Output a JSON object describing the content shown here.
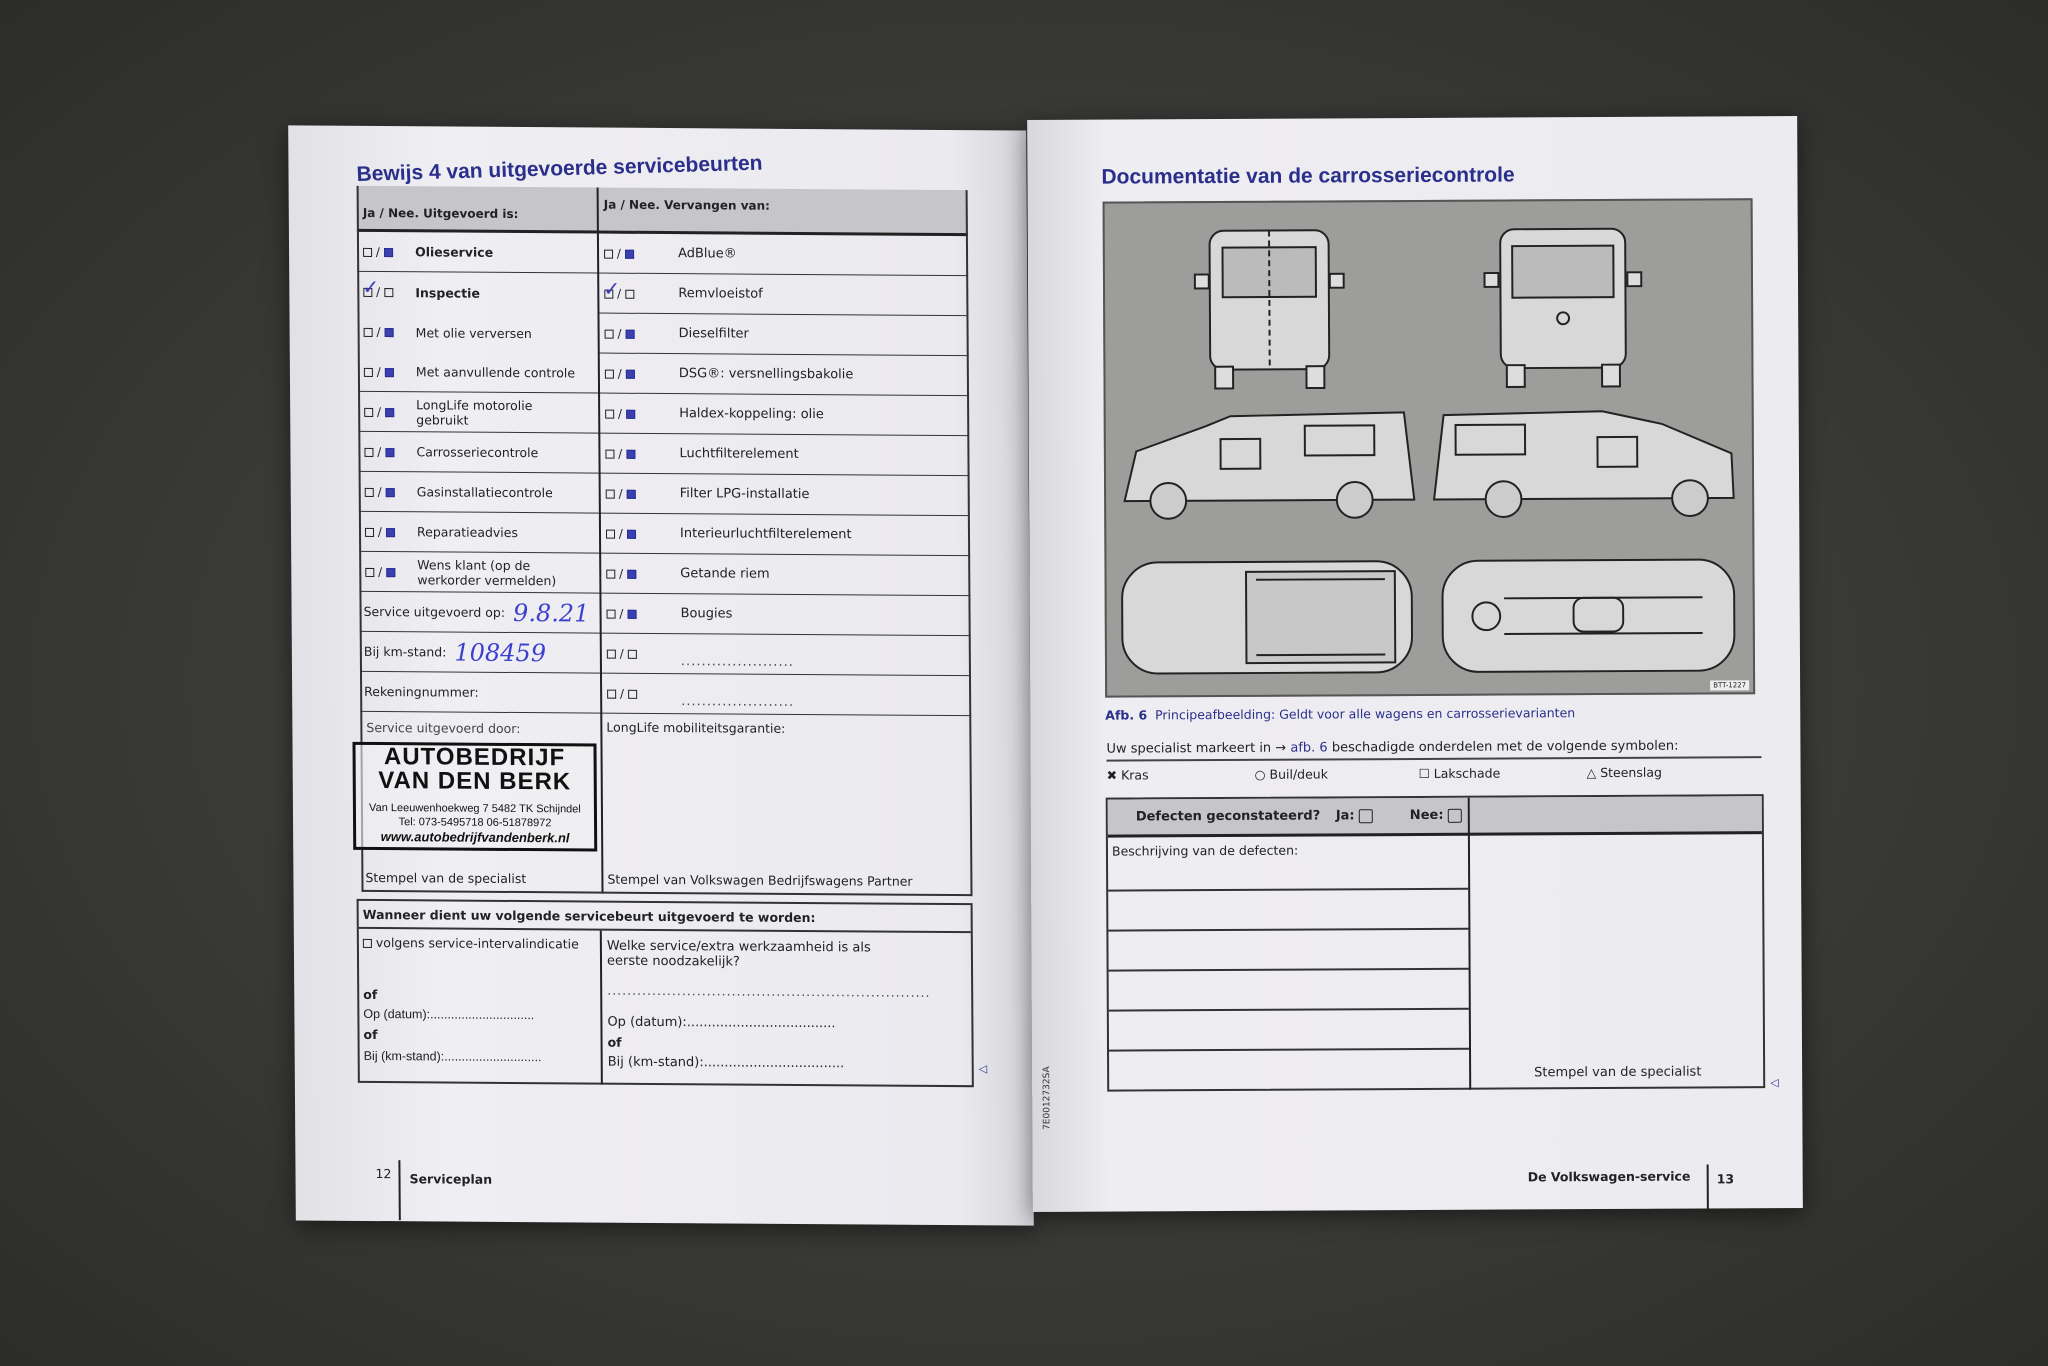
{
  "left_page": {
    "title": "Bewijs 4 van uitgevoerde servicebeurten",
    "col_left_header": "Ja / Nee. Uitgevoerd is:",
    "col_right_header": "Ja / Nee. Vervangen van:",
    "left_rows": [
      {
        "label": "Olieservice",
        "checked": "nee",
        "bold": true
      },
      {
        "label": "Inspectie",
        "checked": "ja",
        "bold": true
      },
      {
        "label": "Met olie verversen",
        "checked": "nee"
      },
      {
        "label": "Met aanvullende controle",
        "checked": "nee"
      },
      {
        "label": "LongLife motorolie gebruikt",
        "checked": "nee"
      },
      {
        "label": "Carrosseriecontrole",
        "checked": "nee"
      },
      {
        "label": "Gasinstallatiecontrole",
        "checked": "nee"
      },
      {
        "label": "Reparatieadvies",
        "checked": "nee"
      },
      {
        "label": "Wens klant (op de werkorder vermelden)",
        "checked": "nee"
      }
    ],
    "service_date_label": "Service uitgevoerd op:",
    "service_date_value": "9.8.21",
    "km_label": "Bij km-stand:",
    "km_value": "108459",
    "account_label": "Rekeningnummer:",
    "right_rows": [
      {
        "label": "AdBlue®",
        "checked": "nee"
      },
      {
        "label": "Remvloeistof",
        "checked": "ja"
      },
      {
        "label": "Dieselfilter",
        "checked": "nee"
      },
      {
        "label": "DSG®: versnellingsbakolie",
        "checked": "nee"
      },
      {
        "label": "Haldex-koppeling: olie",
        "checked": "nee"
      },
      {
        "label": "Luchtfilterelement",
        "checked": "nee"
      },
      {
        "label": "Filter LPG-installatie",
        "checked": "nee"
      },
      {
        "label": "Interieurluchtfilterelement",
        "checked": "nee"
      },
      {
        "label": "Getande riem",
        "checked": "nee"
      },
      {
        "label": "Bougies",
        "checked": "nee"
      },
      {
        "label": "......................",
        "checked": "none"
      },
      {
        "label": "......................",
        "checked": "none"
      }
    ],
    "service_by_label": "Service uitgevoerd door:",
    "stamp_specialist_label": "Stempel van de specialist",
    "longlife_label": "LongLife mobiliteitsgarantie:",
    "stamp_partner_label": "Stempel van Volkswagen Bedrijfswagens Partner",
    "stamp": {
      "line1": "AUTOBEDRIJF",
      "line2": "VAN DEN BERK",
      "address": "Van Leeuwenhoekweg 7   5482 TK Schijndel",
      "phone": "Tel: 073-5495718     06-51878972",
      "url": "www.autobedrijfvandenberk.nl"
    },
    "next_service": {
      "header": "Wanneer dient uw volgende servicebeurt uitgevoerd te worden:",
      "interval_option": "volgens service-intervalindicatie",
      "of1": "of",
      "date_label": "Op (datum):..............................",
      "of2": "of",
      "km_label": "Bij (km-stand):............................",
      "question": "Welke service/extra werkzaamheid is als eerste noodzakelijk?",
      "question_line": ".................................................................",
      "r_date_label": "Op (datum):....................................",
      "r_of": "of",
      "r_km_label": "Bij (km-stand):.................................."
    },
    "footer_page": "12",
    "footer_section": "Serviceplan"
  },
  "right_page": {
    "title": "Documentatie van de carrosseriecontrole",
    "figure_code": "BTT-1227",
    "caption_num": "Afb. 6",
    "caption_text": "Principeafbeelding: Geldt voor alle wagens en carrosserievarianten",
    "instruction_pre": "Uw specialist markeert in →",
    "instruction_link": "afb. 6",
    "instruction_post": "beschadigde onderdelen met de volgende symbolen:",
    "symbols": [
      {
        "glyph": "✖",
        "label": "Kras"
      },
      {
        "glyph": "○",
        "label": "Buil/deuk"
      },
      {
        "glyph": "☐",
        "label": "Lakschade"
      },
      {
        "glyph": "△",
        "label": "Steenslag"
      }
    ],
    "defects_question": "Defecten geconstateerd?",
    "yes_label": "Ja:",
    "no_label": "Nee:",
    "description_label": "Beschrijving van de defecten:",
    "stamp_label": "Stempel van de specialist",
    "side_code": "7E0012732SA",
    "footer_section": "De Volkswagen-service",
    "footer_page": "13"
  },
  "colors": {
    "brand_blue": "#2a2f8c",
    "ink_blue": "#3a3fd0",
    "background": "#3c3c3a"
  }
}
